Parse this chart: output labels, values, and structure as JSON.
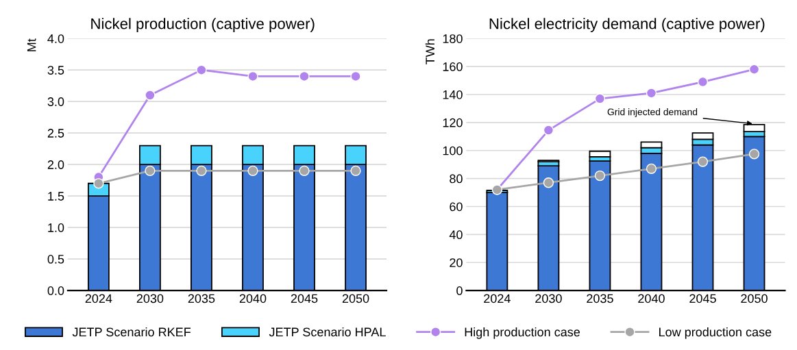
{
  "chart_data": [
    {
      "type": "bar",
      "title": "Nickel production (captive power)",
      "ylabel": "Mt",
      "categories": [
        "2024",
        "2030",
        "2035",
        "2040",
        "2045",
        "2050"
      ],
      "stacked": true,
      "ylim": [
        0,
        4
      ],
      "yticks": [
        {
          "value": 0,
          "label": "0.0"
        },
        0.5,
        {
          "value": 1,
          "label": "1.0"
        },
        1.5,
        {
          "value": 2,
          "label": "2.0"
        },
        2.5,
        {
          "value": 3,
          "label": "3.0"
        },
        3.5,
        {
          "value": 4,
          "label": "4.0"
        }
      ],
      "grid": "y",
      "legend": "bottom",
      "marker": "circle",
      "series": [
        {
          "name": "JETP Scenario RKEF",
          "color": "#3c78d4",
          "values": [
            1.5,
            2,
            2,
            2,
            2,
            2
          ]
        },
        {
          "name": "JETP Scenario HPAL",
          "color": "#49d2fc",
          "values": [
            0.2,
            0.3,
            0.3,
            0.3,
            0.3,
            0.3
          ]
        },
        {
          "name": "High production case",
          "type": "line",
          "color": "#b084ec",
          "values": [
            1.8,
            3.1,
            3.5,
            3.4,
            3.4,
            3.4
          ]
        },
        {
          "name": "Low production case",
          "type": "line",
          "color": "#a6a6a6",
          "values": [
            1.7,
            1.9,
            1.9,
            1.9,
            1.9,
            1.9
          ]
        }
      ]
    },
    {
      "type": "bar",
      "title": "Nickel electricity demand (captive power)",
      "ylabel": "TWh",
      "categories": [
        "2024",
        "2030",
        "2035",
        "2040",
        "2045",
        "2050"
      ],
      "stacked": true,
      "ylim": [
        0,
        180
      ],
      "yticks": [
        0,
        20,
        40,
        60,
        80,
        100,
        120,
        140,
        160,
        180
      ],
      "grid": "y",
      "marker": "circle",
      "annotations": [
        {
          "text": "Grid injected demand",
          "x": "2050",
          "y": 119
        }
      ],
      "series": [
        {
          "name": "JETP Scenario RKEF",
          "color": "#3c78d4",
          "values": [
            70,
            89,
            92.5,
            98,
            104,
            110
          ]
        },
        {
          "name": "JETP Scenario HPAL",
          "color": "#49d2fc",
          "values": [
            1.5,
            3,
            3,
            4,
            4,
            3.5
          ]
        },
        {
          "color": "#ffffff",
          "values": [
            null,
            1,
            4,
            4,
            4.5,
            5
          ]
        },
        {
          "name": "High production case",
          "type": "line",
          "color": "#b084ec",
          "values": [
            72,
            114.5,
            137,
            141,
            149,
            158
          ]
        },
        {
          "name": "Low production case",
          "type": "line",
          "color": "#a6a6a6",
          "values": [
            72,
            77,
            82,
            87,
            92,
            97.5
          ]
        }
      ]
    }
  ]
}
